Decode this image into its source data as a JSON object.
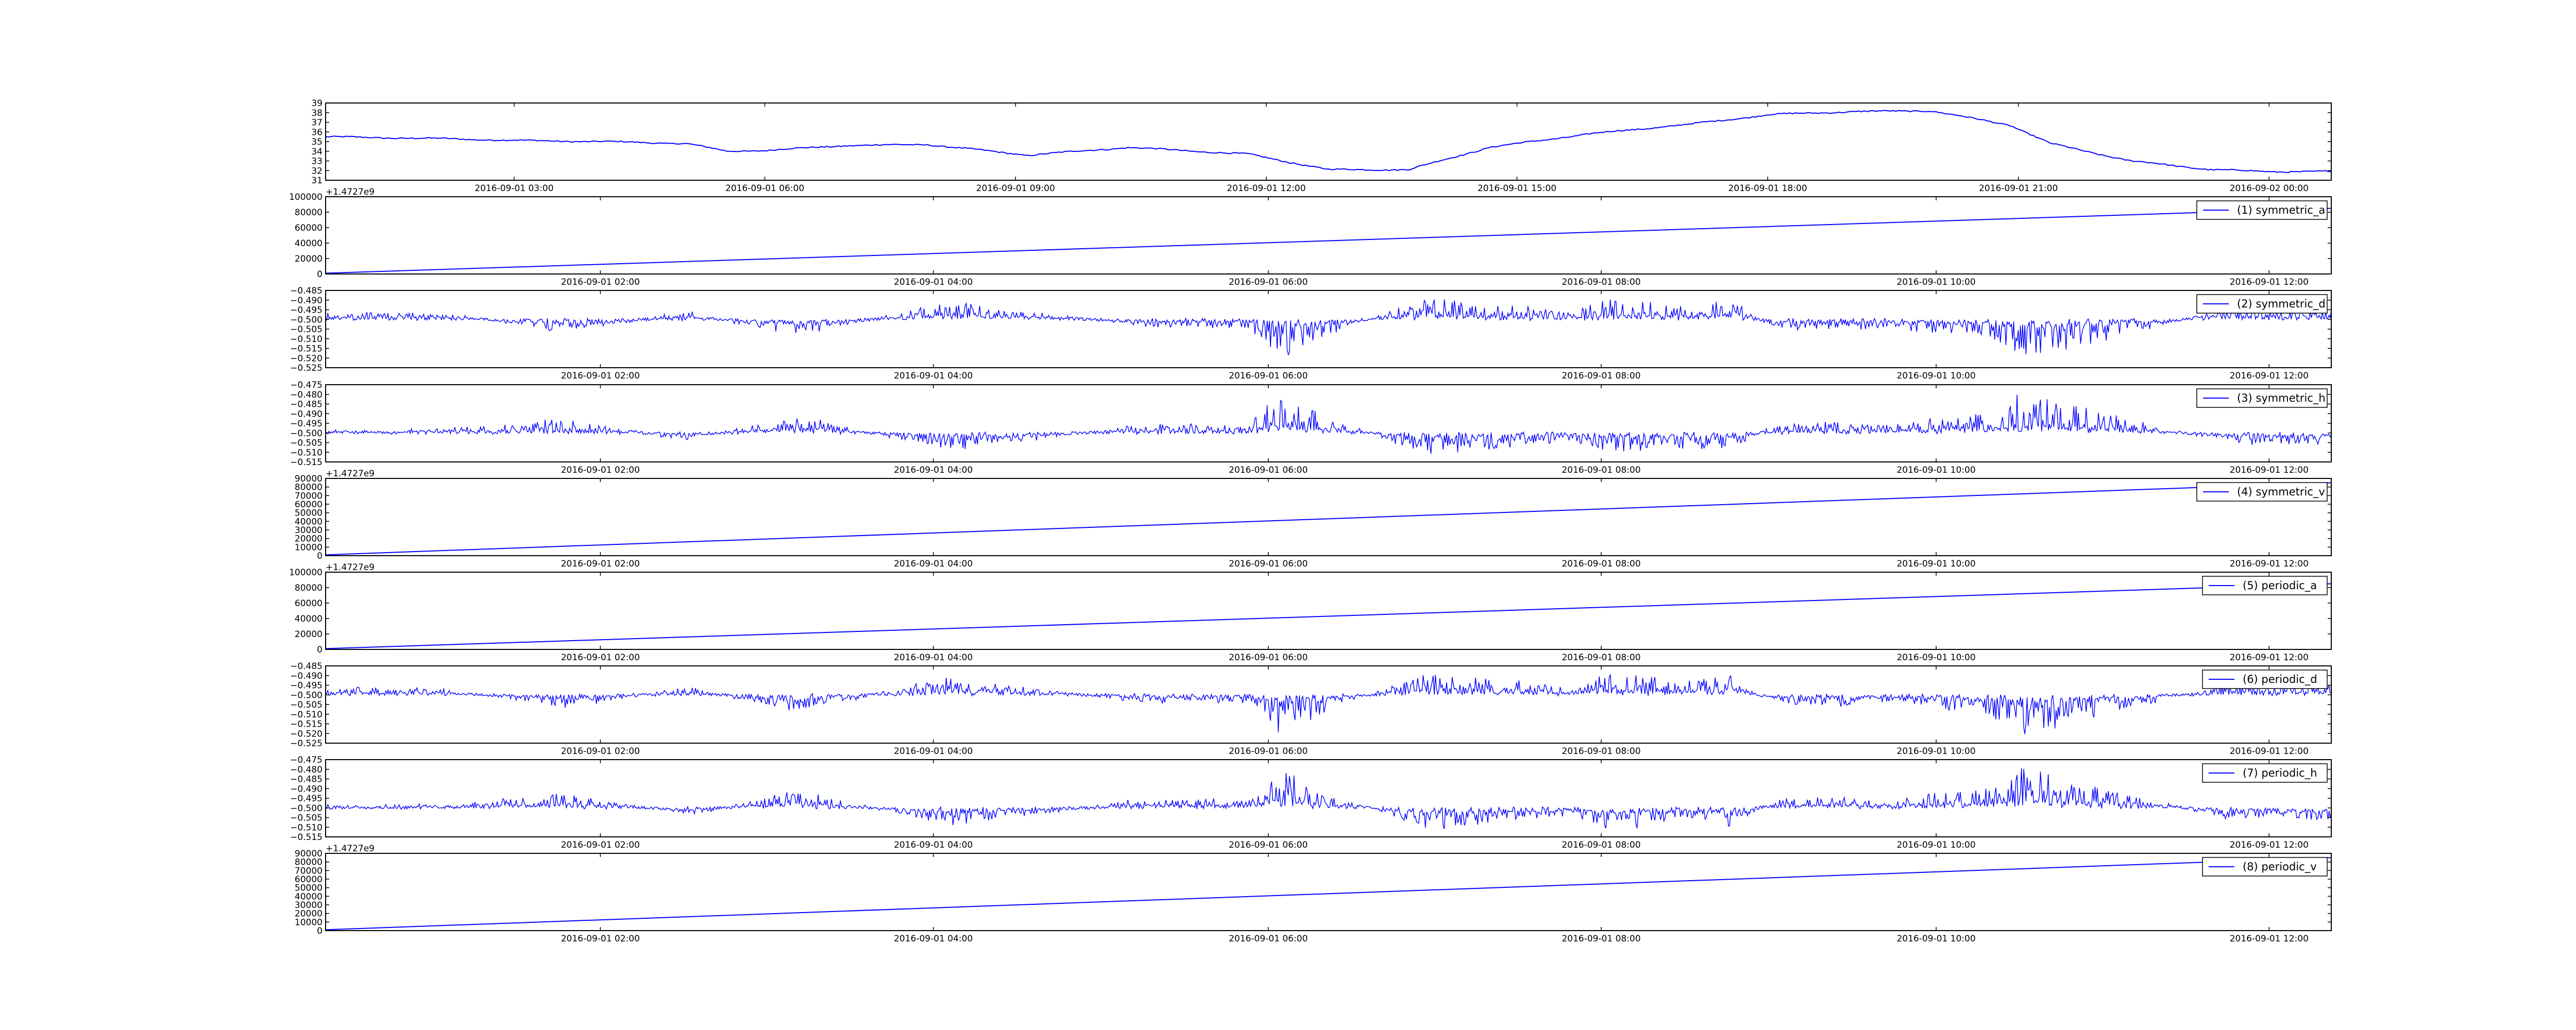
{
  "colors": {
    "line": "#0000ff",
    "axes": "#000000",
    "background": "#ffffff"
  },
  "chart_data": [
    {
      "type": "line",
      "title": "",
      "offset_label": "",
      "legend": "",
      "ylim": [
        31,
        39
      ],
      "yticks": [
        "31",
        "32",
        "33",
        "34",
        "35",
        "36",
        "37",
        "38",
        "39"
      ],
      "xticks": [
        "2016-09-01 03:00",
        "2016-09-01 06:00",
        "2016-09-01 09:00",
        "2016-09-01 12:00",
        "2016-09-01 15:00",
        "2016-09-01 18:00",
        "2016-09-01 21:00",
        "2016-09-02 00:00"
      ],
      "x": [
        0,
        0.03,
        0.06,
        0.1,
        0.14,
        0.18,
        0.2,
        0.22,
        0.26,
        0.3,
        0.35,
        0.4,
        0.46,
        0.5,
        0.54,
        0.58,
        0.63,
        0.68,
        0.72,
        0.76,
        0.8,
        0.84,
        0.86,
        0.9,
        0.94,
        0.97,
        1.0
      ],
      "values": [
        35.5,
        35.4,
        35.3,
        35.1,
        35.0,
        34.8,
        34.0,
        34.1,
        34.6,
        34.7,
        33.6,
        34.4,
        33.7,
        32.1,
        32.1,
        34.4,
        35.8,
        36.8,
        37.8,
        38.1,
        38.2,
        36.7,
        34.8,
        33.0,
        32.1,
        31.9,
        31.9
      ]
    },
    {
      "type": "line",
      "offset_label": "+1.4727e9",
      "legend": "(1) symmetric_a",
      "ylim": [
        0,
        100000
      ],
      "yticks": [
        "0",
        "20000",
        "40000",
        "60000",
        "80000",
        "100000"
      ],
      "xticks": [
        "2016-09-01 02:00",
        "2016-09-01 04:00",
        "2016-09-01 06:00",
        "2016-09-01 08:00",
        "2016-09-01 10:00",
        "2016-09-01 12:00"
      ],
      "x": [
        0,
        1
      ],
      "values": [
        1000,
        85000
      ]
    },
    {
      "type": "line",
      "offset_label": "",
      "legend": "(2) symmetric_d",
      "ylim": [
        -0.525,
        -0.485
      ],
      "yticks": [
        "−0.525",
        "−0.520",
        "−0.515",
        "−0.510",
        "−0.505",
        "−0.500",
        "−0.495",
        "−0.490",
        "−0.485"
      ],
      "xticks": [
        "2016-09-01 02:00",
        "2016-09-01 04:00",
        "2016-09-01 06:00",
        "2016-09-01 08:00",
        "2016-09-01 10:00",
        "2016-09-01 12:00"
      ],
      "baseline": -0.5,
      "x": [
        0.02,
        0.06,
        0.12,
        0.18,
        0.235,
        0.31,
        0.35,
        0.41,
        0.46,
        0.475,
        0.5,
        0.55,
        0.62,
        0.64,
        0.68,
        0.7,
        0.72,
        0.75,
        0.78,
        0.83,
        0.845,
        0.9,
        0.95
      ],
      "values": [
        -0.496,
        -0.497,
        -0.507,
        -0.496,
        -0.509,
        -0.491,
        -0.496,
        -0.504,
        -0.504,
        -0.521,
        -0.508,
        -0.488,
        -0.496,
        -0.489,
        -0.492,
        -0.489,
        -0.504,
        -0.506,
        -0.504,
        -0.511,
        -0.522,
        -0.507,
        -0.494
      ]
    },
    {
      "type": "line",
      "offset_label": "",
      "legend": "(3) symmetric_h",
      "ylim": [
        -0.515,
        -0.475
      ],
      "yticks": [
        "−0.515",
        "−0.510",
        "−0.505",
        "−0.500",
        "−0.495",
        "−0.490",
        "−0.485",
        "−0.480",
        "−0.475"
      ],
      "xticks": [
        "2016-09-01 02:00",
        "2016-09-01 04:00",
        "2016-09-01 06:00",
        "2016-09-01 08:00",
        "2016-09-01 10:00",
        "2016-09-01 12:00"
      ],
      "baseline": -0.5,
      "x": [
        0.02,
        0.06,
        0.12,
        0.18,
        0.235,
        0.31,
        0.35,
        0.41,
        0.46,
        0.475,
        0.5,
        0.55,
        0.62,
        0.64,
        0.68,
        0.7,
        0.72,
        0.75,
        0.78,
        0.83,
        0.845,
        0.9,
        0.95
      ],
      "values": [
        -0.499,
        -0.498,
        -0.492,
        -0.504,
        -0.491,
        -0.509,
        -0.504,
        -0.495,
        -0.496,
        -0.479,
        -0.492,
        -0.512,
        -0.504,
        -0.511,
        -0.508,
        -0.511,
        -0.496,
        -0.494,
        -0.496,
        -0.489,
        -0.478,
        -0.493,
        -0.506
      ]
    },
    {
      "type": "line",
      "offset_label": "+1.4727e9",
      "legend": "(4) symmetric_v",
      "ylim": [
        0,
        90000
      ],
      "yticks": [
        "0",
        "10000",
        "20000",
        "30000",
        "40000",
        "50000",
        "60000",
        "70000",
        "80000",
        "90000"
      ],
      "xticks": [
        "2016-09-01 02:00",
        "2016-09-01 04:00",
        "2016-09-01 06:00",
        "2016-09-01 08:00",
        "2016-09-01 10:00",
        "2016-09-01 12:00"
      ],
      "x": [
        0,
        1
      ],
      "values": [
        1000,
        85000
      ]
    },
    {
      "type": "line",
      "offset_label": "+1.4727e9",
      "legend": "(5) periodic_a",
      "ylim": [
        0,
        100000
      ],
      "yticks": [
        "0",
        "20000",
        "40000",
        "60000",
        "80000",
        "100000"
      ],
      "xticks": [
        "2016-09-01 02:00",
        "2016-09-01 04:00",
        "2016-09-01 06:00",
        "2016-09-01 08:00",
        "2016-09-01 10:00",
        "2016-09-01 12:00"
      ],
      "x": [
        0,
        1
      ],
      "values": [
        1000,
        85000
      ]
    },
    {
      "type": "line",
      "offset_label": "",
      "legend": "(6) periodic_d",
      "ylim": [
        -0.525,
        -0.485
      ],
      "yticks": [
        "−0.525",
        "−0.520",
        "−0.515",
        "−0.510",
        "−0.505",
        "−0.500",
        "−0.495",
        "−0.490",
        "−0.485"
      ],
      "xticks": [
        "2016-09-01 02:00",
        "2016-09-01 04:00",
        "2016-09-01 06:00",
        "2016-09-01 08:00",
        "2016-09-01 10:00",
        "2016-09-01 12:00"
      ],
      "baseline": -0.5,
      "x": [
        0.02,
        0.06,
        0.12,
        0.18,
        0.235,
        0.31,
        0.35,
        0.41,
        0.46,
        0.475,
        0.5,
        0.55,
        0.62,
        0.64,
        0.68,
        0.7,
        0.72,
        0.75,
        0.78,
        0.83,
        0.845,
        0.9,
        0.95
      ],
      "values": [
        -0.496,
        -0.497,
        -0.507,
        -0.496,
        -0.509,
        -0.491,
        -0.496,
        -0.504,
        -0.504,
        -0.521,
        -0.508,
        -0.488,
        -0.496,
        -0.489,
        -0.492,
        -0.489,
        -0.504,
        -0.506,
        -0.504,
        -0.511,
        -0.522,
        -0.507,
        -0.494
      ]
    },
    {
      "type": "line",
      "offset_label": "",
      "legend": "(7) periodic_h",
      "ylim": [
        -0.515,
        -0.475
      ],
      "yticks": [
        "−0.515",
        "−0.510",
        "−0.505",
        "−0.500",
        "−0.495",
        "−0.490",
        "−0.485",
        "−0.480",
        "−0.475"
      ],
      "xticks": [
        "2016-09-01 02:00",
        "2016-09-01 04:00",
        "2016-09-01 06:00",
        "2016-09-01 08:00",
        "2016-09-01 10:00",
        "2016-09-01 12:00"
      ],
      "baseline": -0.5,
      "x": [
        0.02,
        0.06,
        0.12,
        0.18,
        0.235,
        0.31,
        0.35,
        0.41,
        0.46,
        0.475,
        0.5,
        0.55,
        0.62,
        0.64,
        0.68,
        0.7,
        0.72,
        0.75,
        0.78,
        0.83,
        0.845,
        0.9,
        0.95
      ],
      "values": [
        -0.499,
        -0.498,
        -0.492,
        -0.504,
        -0.491,
        -0.509,
        -0.504,
        -0.495,
        -0.496,
        -0.479,
        -0.492,
        -0.512,
        -0.504,
        -0.511,
        -0.508,
        -0.511,
        -0.496,
        -0.494,
        -0.496,
        -0.489,
        -0.478,
        -0.493,
        -0.506
      ]
    },
    {
      "type": "line",
      "offset_label": "+1.4727e9",
      "legend": "(8) periodic_v",
      "ylim": [
        0,
        90000
      ],
      "yticks": [
        "0",
        "10000",
        "20000",
        "30000",
        "40000",
        "50000",
        "60000",
        "70000",
        "80000",
        "90000"
      ],
      "xticks": [
        "2016-09-01 02:00",
        "2016-09-01 04:00",
        "2016-09-01 06:00",
        "2016-09-01 08:00",
        "2016-09-01 10:00",
        "2016-09-01 12:00"
      ],
      "x": [
        0,
        1
      ],
      "values": [
        1000,
        85000
      ]
    }
  ]
}
